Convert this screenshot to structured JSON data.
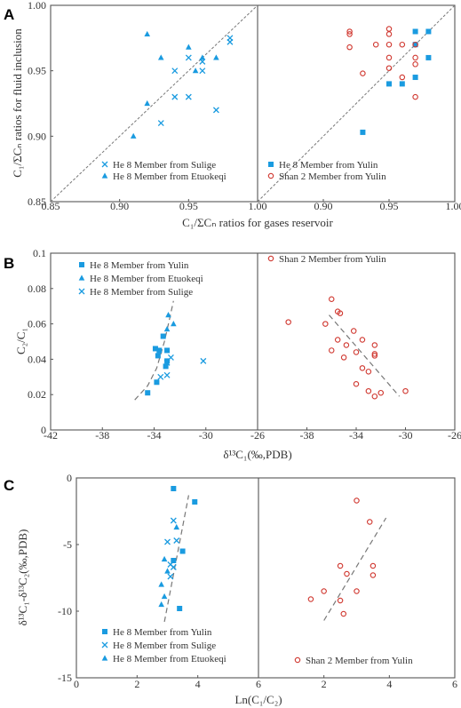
{
  "colors": {
    "blue": "#1a9be0",
    "red": "#d0372f",
    "axis": "#555555",
    "trend": "#777777"
  },
  "chart_data": [
    {
      "panel": "A",
      "type": "scatter",
      "ylabel": "C₁/ΣCₙ ratios for fluid inclusion",
      "xlabel": "C₁/ΣCₙ ratios for gases reservoir",
      "subplots": [
        {
          "xlim": [
            0.85,
            1.0
          ],
          "ylim": [
            0.85,
            1.0
          ],
          "xticks": [
            "0.85",
            "0.90",
            "0.95",
            "1.00"
          ],
          "yticks": [
            "0.85",
            "0.90",
            "0.95",
            "1.00"
          ],
          "diagonal": true,
          "legend": [
            {
              "name": "He 8 Member from Sulige",
              "marker": "x"
            },
            {
              "name": "He 8 Member from Etuokeqi",
              "marker": "triangle"
            }
          ],
          "series": [
            {
              "name": "He 8 Member from Sulige",
              "marker": "x",
              "color": "blue",
              "points": [
                [
                  0.94,
                  0.95
                ],
                [
                  0.95,
                  0.96
                ],
                [
                  0.96,
                  0.957
                ],
                [
                  0.96,
                  0.95
                ],
                [
                  0.98,
                  0.975
                ],
                [
                  0.98,
                  0.972
                ],
                [
                  0.94,
                  0.93
                ],
                [
                  0.95,
                  0.93
                ],
                [
                  0.93,
                  0.91
                ],
                [
                  0.97,
                  0.92
                ]
              ]
            },
            {
              "name": "He 8 Member from Etuokeqi",
              "marker": "triangle",
              "color": "blue",
              "points": [
                [
                  0.92,
                  0.978
                ],
                [
                  0.93,
                  0.96
                ],
                [
                  0.95,
                  0.968
                ],
                [
                  0.955,
                  0.95
                ],
                [
                  0.96,
                  0.96
                ],
                [
                  0.97,
                  0.96
                ],
                [
                  0.92,
                  0.925
                ],
                [
                  0.91,
                  0.9
                ]
              ]
            }
          ]
        },
        {
          "xlim": [
            0.85,
            1.0
          ],
          "ylim": [
            0.85,
            1.0
          ],
          "xticks": [
            "",
            "0.90",
            "0.95",
            "1.00"
          ],
          "diagonal": true,
          "legend": [
            {
              "name": "He 8 Member from Yulin",
              "marker": "square"
            },
            {
              "name": "Shan 2 Member from Yulin",
              "marker": "circle"
            }
          ],
          "series": [
            {
              "name": "He 8 Member from Yulin",
              "marker": "square",
              "color": "blue",
              "points": [
                [
                  0.97,
                  0.98
                ],
                [
                  0.98,
                  0.98
                ],
                [
                  0.97,
                  0.97
                ],
                [
                  0.98,
                  0.96
                ],
                [
                  0.97,
                  0.945
                ],
                [
                  0.95,
                  0.94
                ],
                [
                  0.96,
                  0.94
                ],
                [
                  0.93,
                  0.903
                ]
              ]
            },
            {
              "name": "Shan 2 Member from Yulin",
              "marker": "circle",
              "color": "red",
              "points": [
                [
                  0.92,
                  0.98
                ],
                [
                  0.92,
                  0.978
                ],
                [
                  0.95,
                  0.982
                ],
                [
                  0.95,
                  0.978
                ],
                [
                  0.94,
                  0.97
                ],
                [
                  0.95,
                  0.97
                ],
                [
                  0.96,
                  0.97
                ],
                [
                  0.97,
                  0.97
                ],
                [
                  0.92,
                  0.968
                ],
                [
                  0.95,
                  0.96
                ],
                [
                  0.95,
                  0.952
                ],
                [
                  0.97,
                  0.96
                ],
                [
                  0.97,
                  0.955
                ],
                [
                  0.93,
                  0.948
                ],
                [
                  0.96,
                  0.945
                ],
                [
                  0.97,
                  0.93
                ]
              ]
            }
          ]
        }
      ]
    },
    {
      "panel": "B",
      "type": "scatter",
      "ylabel": "C₂/C₁",
      "xlabel": "δ¹³C₁(‰,PDB)",
      "subplots": [
        {
          "xlim": [
            -42,
            -26
          ],
          "ylim": [
            0,
            0.1
          ],
          "xticks": [
            "-42",
            "-38",
            "-34",
            "-30",
            "-26"
          ],
          "yticks": [
            "0",
            "0.02",
            "0.04",
            "0.06",
            "0.08",
            "0.1"
          ],
          "legend": [
            {
              "name": "He 8 Member from Yulin",
              "marker": "square"
            },
            {
              "name": "He 8 Member from Etuokeqi",
              "marker": "triangle"
            },
            {
              "name": "He 8 Member from Sulige",
              "marker": "x"
            }
          ],
          "trend": [
            [
              -35.5,
              0.017
            ],
            [
              -34.5,
              0.025
            ],
            [
              -33.8,
              0.035
            ],
            [
              -33.2,
              0.05
            ],
            [
              -32.8,
              0.063
            ],
            [
              -32.5,
              0.073
            ]
          ],
          "series": [
            {
              "name": "He 8 Member from Yulin",
              "marker": "square",
              "color": "blue",
              "points": [
                [
                  -34.5,
                  0.021
                ],
                [
                  -33.8,
                  0.027
                ],
                [
                  -33.9,
                  0.046
                ],
                [
                  -33.6,
                  0.045
                ],
                [
                  -33.7,
                  0.042
                ],
                [
                  -33.3,
                  0.053
                ],
                [
                  -33,
                  0.045
                ],
                [
                  -33,
                  0.039
                ],
                [
                  -33.1,
                  0.036
                ]
              ]
            },
            {
              "name": "He 8 Member from Etuokeqi",
              "marker": "triangle",
              "color": "blue",
              "points": [
                [
                  -32.9,
                  0.065
                ],
                [
                  -33,
                  0.057
                ],
                [
                  -32.5,
                  0.06
                ]
              ]
            },
            {
              "name": "He 8 Member from Sulige",
              "marker": "x",
              "color": "blue",
              "points": [
                [
                  -33.5,
                  0.03
                ],
                [
                  -33,
                  0.031
                ],
                [
                  -32.7,
                  0.041
                ],
                [
                  -33,
                  0.038
                ],
                [
                  -30.2,
                  0.039
                ]
              ]
            }
          ]
        },
        {
          "xlim": [
            -42,
            -26
          ],
          "ylim": [
            0,
            0.1
          ],
          "xticks": [
            "",
            "-38",
            "-34",
            "-30",
            "-26"
          ],
          "legend": [
            {
              "name": "Shan 2 Member from Yulin",
              "marker": "circle"
            }
          ],
          "trend": [
            [
              -36.2,
              0.065
            ],
            [
              -30.5,
              0.019
            ]
          ],
          "series": [
            {
              "name": "Shan 2 Member from Yulin",
              "marker": "circle",
              "color": "red",
              "points": [
                [
                  -39.5,
                  0.061
                ],
                [
                  -36,
                  0.074
                ],
                [
                  -35.5,
                  0.067
                ],
                [
                  -35.3,
                  0.066
                ],
                [
                  -36.5,
                  0.06
                ],
                [
                  -35.5,
                  0.051
                ],
                [
                  -34.8,
                  0.048
                ],
                [
                  -34.2,
                  0.056
                ],
                [
                  -33.5,
                  0.051
                ],
                [
                  -36,
                  0.045
                ],
                [
                  -35,
                  0.041
                ],
                [
                  -34,
                  0.044
                ],
                [
                  -33.5,
                  0.035
                ],
                [
                  -33,
                  0.033
                ],
                [
                  -32.5,
                  0.048
                ],
                [
                  -32.5,
                  0.043
                ],
                [
                  -32.5,
                  0.042
                ],
                [
                  -34,
                  0.026
                ],
                [
                  -33,
                  0.022
                ],
                [
                  -32.5,
                  0.019
                ],
                [
                  -32,
                  0.021
                ],
                [
                  -30,
                  0.022
                ]
              ]
            }
          ]
        }
      ]
    },
    {
      "panel": "C",
      "type": "scatter",
      "ylabel": "δ¹³C₁-δ¹³C₂(‰,PDB)",
      "xlabel": "Ln(C₁/C₂)",
      "subplots": [
        {
          "xlim": [
            0,
            6
          ],
          "ylim": [
            -15,
            0
          ],
          "xticks": [
            "0",
            "2",
            "4",
            "6"
          ],
          "yticks": [
            "-15",
            "-10",
            "-5",
            "0"
          ],
          "legend": [
            {
              "name": "He 8 Member from Yulin",
              "marker": "square"
            },
            {
              "name": "He 8 Member from Sulige",
              "marker": "x"
            },
            {
              "name": "He 8 Member from Etuokeqi",
              "marker": "triangle"
            }
          ],
          "trend": [
            [
              2.9,
              -10.8
            ],
            [
              3.7,
              -1.3
            ]
          ],
          "series": [
            {
              "name": "He 8 Member from Yulin",
              "marker": "square",
              "color": "blue",
              "points": [
                [
                  3.2,
                  -0.8
                ],
                [
                  3.9,
                  -1.8
                ],
                [
                  3.5,
                  -5.5
                ],
                [
                  3.2,
                  -6.2
                ],
                [
                  3.4,
                  -9.8
                ]
              ]
            },
            {
              "name": "He 8 Member from Sulige",
              "marker": "x",
              "color": "blue",
              "points": [
                [
                  3.2,
                  -3.2
                ],
                [
                  3.0,
                  -4.8
                ],
                [
                  3.3,
                  -4.7
                ],
                [
                  3.1,
                  -6.5
                ],
                [
                  3.2,
                  -6.7
                ],
                [
                  3.1,
                  -7.4
                ]
              ]
            },
            {
              "name": "He 8 Member from Etuokeqi",
              "marker": "triangle",
              "color": "blue",
              "points": [
                [
                  3.3,
                  -3.7
                ],
                [
                  2.9,
                  -6.1
                ],
                [
                  3.0,
                  -7.0
                ],
                [
                  2.8,
                  -8.0
                ],
                [
                  2.9,
                  -8.9
                ],
                [
                  2.8,
                  -9.5
                ]
              ]
            }
          ]
        },
        {
          "xlim": [
            0,
            6
          ],
          "ylim": [
            -15,
            0
          ],
          "xticks": [
            "",
            "2",
            "4",
            "6"
          ],
          "legend": [
            {
              "name": "Shan 2 Member from Yulin",
              "marker": "circle"
            }
          ],
          "trend": [
            [
              2.0,
              -10.7
            ],
            [
              3.9,
              -3.0
            ]
          ],
          "series": [
            {
              "name": "Shan 2 Member from Yulin",
              "marker": "circle",
              "color": "red",
              "points": [
                [
                  3.0,
                  -1.7
                ],
                [
                  3.4,
                  -3.3
                ],
                [
                  2.5,
                  -6.6
                ],
                [
                  3.5,
                  -6.6
                ],
                [
                  2.7,
                  -7.2
                ],
                [
                  3.5,
                  -7.3
                ],
                [
                  2.0,
                  -8.5
                ],
                [
                  3.0,
                  -8.5
                ],
                [
                  1.6,
                  -9.1
                ],
                [
                  2.5,
                  -9.2
                ],
                [
                  2.6,
                  -10.2
                ]
              ]
            }
          ]
        }
      ]
    }
  ]
}
